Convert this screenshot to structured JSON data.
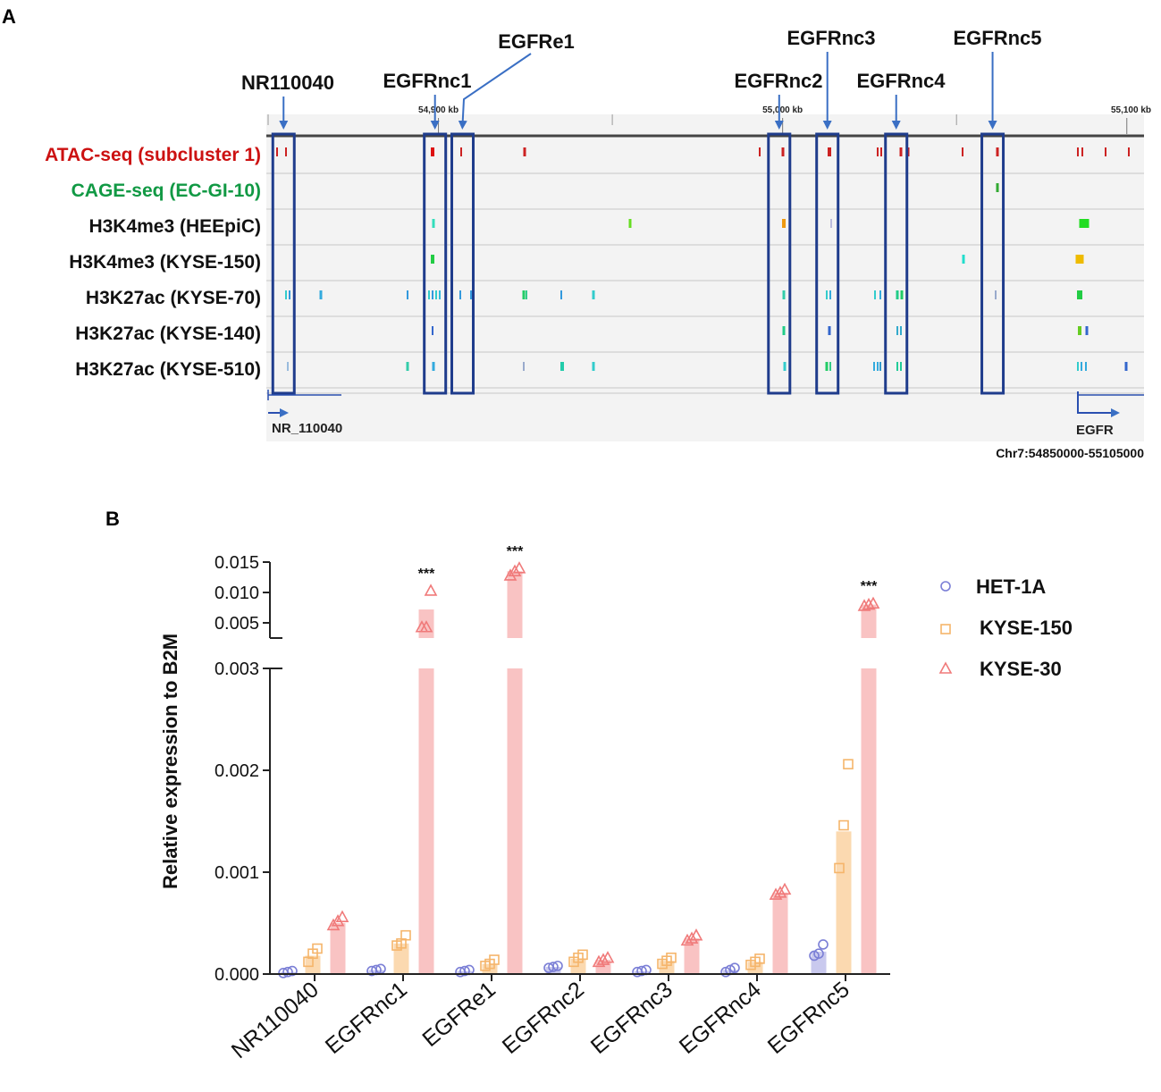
{
  "panelA": {
    "letter": "A",
    "regions": [
      {
        "name": "NR110040",
        "genomic_kb": 54855
      },
      {
        "name": "EGFRnc1",
        "genomic_kb": 54899
      },
      {
        "name": "EGFRe1",
        "genomic_kb": 54907
      },
      {
        "name": "EGFRnc2",
        "genomic_kb": 54999
      },
      {
        "name": "EGFRnc3",
        "genomic_kb": 55013
      },
      {
        "name": "EGFRnc4",
        "genomic_kb": 55033
      },
      {
        "name": "EGFRnc5",
        "genomic_kb": 55061
      }
    ],
    "coord_ticks": [
      "54,900 kb",
      "55,000 kb",
      "55,100 kb"
    ],
    "tracks": [
      {
        "name": "ATAC-seq  (subcluster  1)",
        "color": "#cc1111"
      },
      {
        "name": "CAGE-seq  (EC-GI-10)",
        "color": "#119944"
      },
      {
        "name": "H3K4me3 (HEEpiC)",
        "color": "#111111"
      },
      {
        "name": "H3K4me3 (KYSE-150)",
        "color": "#111111"
      },
      {
        "name": "H3K27ac (KYSE-70)",
        "color": "#111111"
      },
      {
        "name": "H3K27ac  (KYSE-140)",
        "color": "#111111"
      },
      {
        "name": "H3K27ac  (KYSE-510)",
        "color": "#111111"
      }
    ],
    "genes": {
      "left": "NR_110040",
      "right": "EGFR"
    },
    "locus": "Chr7:54850000-55105000",
    "box_color": "#1f3c8c",
    "arrow_color": "#3a6fc4"
  },
  "panelB": {
    "letter": "B",
    "chart_data": {
      "type": "bar",
      "title": "",
      "xlabel": "",
      "ylabel": "Relative expression to B2M",
      "categories": [
        "NR110040",
        "EGFRnc1",
        "EGFRe1",
        "EGFRnc2",
        "EGFRnc3",
        "EGFRnc4",
        "EGFRnc5"
      ],
      "series": [
        {
          "name": "HET-1A",
          "marker": "circle",
          "color": "#7b7fd6",
          "values": [
            2e-05,
            4e-05,
            3e-05,
            7e-05,
            3e-05,
            4e-05,
            0.00022
          ],
          "points": [
            [
              1e-05,
              2e-05,
              3e-05
            ],
            [
              3e-05,
              4e-05,
              5e-05
            ],
            [
              2e-05,
              3e-05,
              4e-05
            ],
            [
              6e-05,
              7e-05,
              8e-05
            ],
            [
              2e-05,
              3e-05,
              4e-05
            ],
            [
              2e-05,
              4e-05,
              6e-05
            ],
            [
              0.00018,
              0.0002,
              0.00029
            ]
          ]
        },
        {
          "name": "KYSE-150",
          "marker": "square",
          "color": "#f5b56b",
          "values": [
            0.00018,
            0.0003,
            0.0001,
            0.00015,
            0.00013,
            0.00012,
            0.0014
          ],
          "points": [
            [
              0.00012,
              0.0002,
              0.00025
            ],
            [
              0.00028,
              0.0003,
              0.00038
            ],
            [
              8e-05,
              0.0001,
              0.00014
            ],
            [
              0.00012,
              0.00016,
              0.00019
            ],
            [
              0.0001,
              0.00013,
              0.00016
            ],
            [
              9e-05,
              0.00012,
              0.00015
            ],
            [
              0.00104,
              0.00146,
              0.00206
            ]
          ]
        },
        {
          "name": "KYSE-30",
          "marker": "triangle",
          "color": "#f07a7a",
          "values": [
            0.0005,
            0.0072,
            0.0135,
            0.00014,
            0.00035,
            0.0008,
            0.008
          ],
          "points": [
            [
              0.00048,
              0.00052,
              0.00056
            ],
            [
              0.0043,
              0.0043,
              0.0103
            ],
            [
              0.0128,
              0.0135,
              0.014
            ],
            [
              0.00012,
              0.00014,
              0.00016
            ],
            [
              0.00033,
              0.00035,
              0.00038
            ],
            [
              0.00078,
              0.0008,
              0.00083
            ],
            [
              0.0078,
              0.008,
              0.0082
            ]
          ]
        }
      ],
      "significance": [
        {
          "category": "EGFRnc1",
          "label": "***"
        },
        {
          "category": "EGFRe1",
          "label": "***"
        },
        {
          "category": "EGFRnc5",
          "label": "***"
        }
      ],
      "y_axis_lower": {
        "range": [
          0,
          0.003
        ],
        "ticks": [
          "0.000",
          "0.001",
          "0.002",
          "0.003"
        ]
      },
      "y_axis_upper": {
        "range": [
          0.002,
          0.015
        ],
        "ticks": [
          "0.005",
          "0.010",
          "0.015"
        ]
      },
      "legend_position": "top-right"
    }
  }
}
